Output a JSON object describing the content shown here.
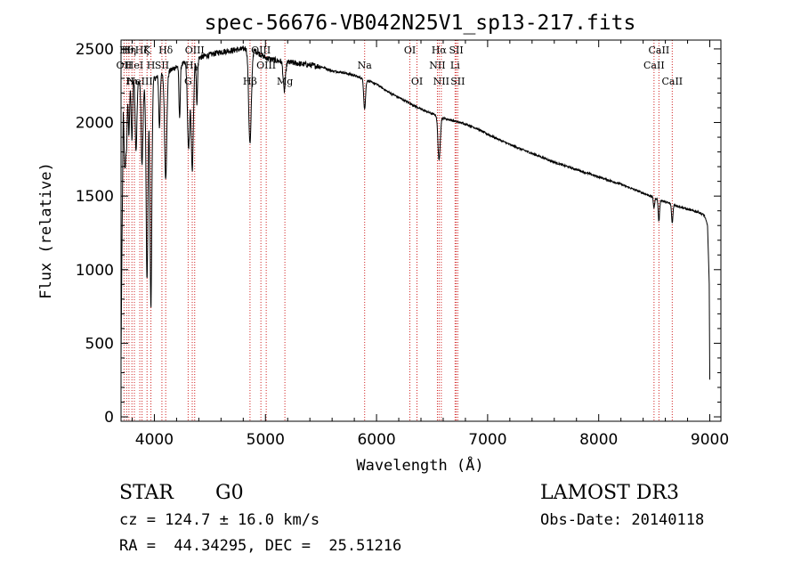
{
  "chart_data": {
    "type": "line",
    "title": "spec-56676-VB042N25V1_sp13-217.fits",
    "xlabel": "Wavelength (Å)",
    "ylabel": "Flux (relative)",
    "xlim": [
      3700,
      9100
    ],
    "ylim": [
      -30,
      2560
    ],
    "xticks": [
      4000,
      5000,
      6000,
      7000,
      8000,
      9000
    ],
    "xtick_labels": [
      "4000",
      "5000",
      "6000",
      "7000",
      "8000",
      "9000"
    ],
    "yticks": [
      0,
      500,
      1000,
      1500,
      2000,
      2500
    ],
    "ytick_labels": [
      "0",
      "500",
      "1000",
      "1500",
      "2000",
      "2500"
    ],
    "grid": false,
    "series": [
      {
        "name": "Flux",
        "continuum": {
          "x": [
            3700,
            3720,
            3760,
            3800,
            3850,
            3900,
            3950,
            4000,
            4100,
            4200,
            4300,
            4400,
            4500,
            4600,
            4700,
            4800,
            4850,
            4900,
            5000,
            5100,
            5200,
            5300,
            5400,
            5500,
            5600,
            5700,
            5800,
            5900,
            6000,
            6100,
            6200,
            6300,
            6400,
            6500,
            6600,
            6700,
            6800,
            6900,
            7000,
            7200,
            7400,
            7600,
            7800,
            8000,
            8200,
            8400,
            8600,
            8800,
            8900,
            8950,
            8980,
            8995,
            9000
          ],
          "y": [
            400,
            2150,
            2300,
            2340,
            2300,
            2250,
            2200,
            2300,
            2330,
            2380,
            2410,
            2440,
            2460,
            2480,
            2490,
            2500,
            2510,
            2490,
            2440,
            2420,
            2410,
            2400,
            2390,
            2380,
            2350,
            2340,
            2320,
            2290,
            2260,
            2210,
            2170,
            2130,
            2090,
            2060,
            2030,
            2010,
            1990,
            1960,
            1920,
            1850,
            1790,
            1730,
            1680,
            1630,
            1580,
            1520,
            1460,
            1410,
            1390,
            1370,
            1300,
            900,
            250
          ]
        },
        "lines": [
          {
            "x": 3735,
            "depth": 500,
            "width": 8
          },
          {
            "x": 3750,
            "depth": 350,
            "width": 6
          },
          {
            "x": 3771,
            "depth": 400,
            "width": 6
          },
          {
            "x": 3798,
            "depth": 450,
            "width": 7
          },
          {
            "x": 3835,
            "depth": 500,
            "width": 8
          },
          {
            "x": 3889,
            "depth": 550,
            "width": 8
          },
          {
            "x": 3934,
            "depth": 1300,
            "width": 8
          },
          {
            "x": 3969,
            "depth": 1500,
            "width": 8
          },
          {
            "x": 4046,
            "depth": 350,
            "width": 6
          },
          {
            "x": 4102,
            "depth": 700,
            "width": 10
          },
          {
            "x": 4227,
            "depth": 350,
            "width": 6
          },
          {
            "x": 4308,
            "depth": 600,
            "width": 10
          },
          {
            "x": 4341,
            "depth": 750,
            "width": 10
          },
          {
            "x": 4383,
            "depth": 300,
            "width": 6
          },
          {
            "x": 4861,
            "depth": 650,
            "width": 12
          },
          {
            "x": 5170,
            "depth": 200,
            "width": 10
          },
          {
            "x": 5893,
            "depth": 200,
            "width": 8
          },
          {
            "x": 6563,
            "depth": 300,
            "width": 10
          },
          {
            "x": 8498,
            "depth": 70,
            "width": 6
          },
          {
            "x": 8542,
            "depth": 150,
            "width": 6
          },
          {
            "x": 8662,
            "depth": 130,
            "width": 6
          }
        ]
      }
    ],
    "annotations": [
      {
        "x": 3727,
        "label": "OII",
        "row": 1
      },
      {
        "x": 3750,
        "label": "Hθ",
        "row": 0
      },
      {
        "x": 3771,
        "label": "Hη",
        "row": 0
      },
      {
        "x": 3798,
        "label": "Hι",
        "row": 2
      },
      {
        "x": 3820,
        "label": "HeI",
        "row": 1
      },
      {
        "x": 3869,
        "label": "NeIII",
        "row": 2
      },
      {
        "x": 3889,
        "label": "Hζ",
        "row": 0
      },
      {
        "x": 3934,
        "label": "K",
        "row": 0
      },
      {
        "x": 3969,
        "label": "H",
        "row": 1
      },
      {
        "x": 4102,
        "label": "Hδ",
        "row": 0
      },
      {
        "x": 4068,
        "label": "SII",
        "row": 1
      },
      {
        "x": 4304,
        "label": "G",
        "row": 2
      },
      {
        "x": 4341,
        "label": "Hγ",
        "row": 1
      },
      {
        "x": 4363,
        "label": "OIII",
        "row": 0
      },
      {
        "x": 4861,
        "label": "Hβ",
        "row": 2
      },
      {
        "x": 4959,
        "label": "OIII",
        "row": 0
      },
      {
        "x": 5007,
        "label": "OIII",
        "row": 1
      },
      {
        "x": 5175,
        "label": "Mg",
        "row": 2
      },
      {
        "x": 5893,
        "label": "Na",
        "row": 1
      },
      {
        "x": 6300,
        "label": "OI",
        "row": 0
      },
      {
        "x": 6364,
        "label": "OI",
        "row": 2
      },
      {
        "x": 6548,
        "label": "NII",
        "row": 1
      },
      {
        "x": 6563,
        "label": "Hα",
        "row": 0
      },
      {
        "x": 6583,
        "label": "NII",
        "row": 2
      },
      {
        "x": 6707,
        "label": "Li",
        "row": 1
      },
      {
        "x": 6717,
        "label": "SII",
        "row": 0
      },
      {
        "x": 6731,
        "label": "SII",
        "row": 2
      },
      {
        "x": 8498,
        "label": "CaII",
        "row": 1
      },
      {
        "x": 8542,
        "label": "CaII",
        "row": 0
      },
      {
        "x": 8662,
        "label": "CaII",
        "row": 2
      }
    ],
    "colors": {
      "spectrum": "#000000",
      "marker": "#d02020",
      "axis": "#000000"
    }
  },
  "info": {
    "class": "STAR",
    "subclass": "G0",
    "survey": "LAMOST DR3",
    "cz": "cz = 124.7 ± 16.0 km/s",
    "obs_date": "Obs-Date: 20140118",
    "coords": "RA =  44.34295, DEC =  25.51216"
  }
}
